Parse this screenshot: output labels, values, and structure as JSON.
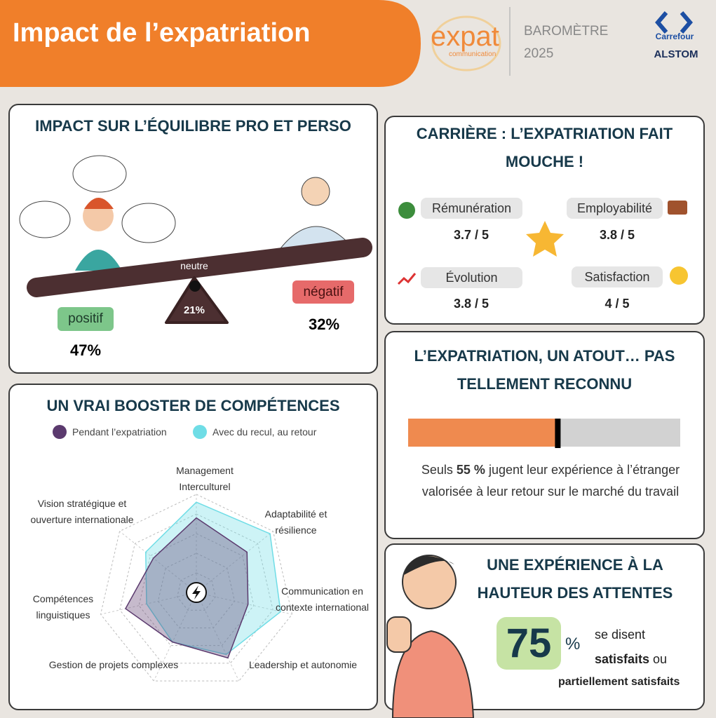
{
  "header": {
    "title": "Impact de l’expatriation",
    "logo": "expat",
    "logo_sub": "communication",
    "barometer": "BAROMÈTRE",
    "year": "2025",
    "brands": [
      "Carrefour",
      "ALSTOM"
    ]
  },
  "balance": {
    "title": "IMPACT SUR L’ÉQUILIBRE PRO ET PERSO",
    "positive": {
      "label": "positif",
      "share": "47%"
    },
    "neutral": {
      "label": "neutre",
      "share": "21%"
    },
    "negative": {
      "label": "négatif",
      "share": "32%"
    }
  },
  "career": {
    "title": "CARRIÈRE : L’EXPATRIATION FAIT MOUCHE !",
    "items": [
      {
        "label": "Rémunération",
        "score": "3.7 / 5"
      },
      {
        "label": "Employabilité",
        "score": "3.8 / 5"
      },
      {
        "label": "Évolution",
        "score": "3.8 / 5"
      },
      {
        "label": "Satisfaction",
        "score": "4 / 5"
      }
    ]
  },
  "recognition": {
    "title": "L’EXPATRIATION, UN ATOUT… PAS TELLEMENT RECONNU",
    "bar": {
      "value": 55,
      "xlim": [
        0,
        100
      ],
      "color": "#ef8a4f"
    },
    "text": [
      "Seuls ",
      "55 %",
      " jugent leur expérience à l’étranger valorisée à leur retour sur le marché du travail"
    ]
  },
  "satisfaction": {
    "title": "UNE EXPÉRIENCE À LA HAUTEUR DES ATTENTES",
    "number": "75",
    "unit": "%",
    "text": [
      "se disent",
      "satisfaits",
      " ou",
      "partiellement satisfaits"
    ]
  },
  "chart_data": {
    "type": "radar",
    "title": "UN VRAI BOOSTER DE COMPÉTENCES",
    "categories": [
      "Management Interculturel",
      "Adaptabilité et résilience",
      "Communication en contexte international",
      "Leadership et autonomie",
      "Gestion de projets complexes",
      "Compétences linguistiques",
      "Vision stratégique et ouverture internationale"
    ],
    "series": [
      {
        "name": "Pendant l’expatriation",
        "color": "#5b3a6e",
        "values": [
          3.8,
          3.3,
          2.7,
          3.7,
          2.8,
          3.7,
          2.8
        ]
      },
      {
        "name": "Avec du recul, au retour",
        "color": "#6fdde6",
        "values": [
          4.6,
          4.8,
          4.4,
          3.5,
          2.8,
          2.6,
          3.3
        ]
      }
    ],
    "rlim": [
      0,
      5
    ],
    "rticks": [
      1,
      2,
      3,
      4,
      5
    ],
    "grid": true
  }
}
